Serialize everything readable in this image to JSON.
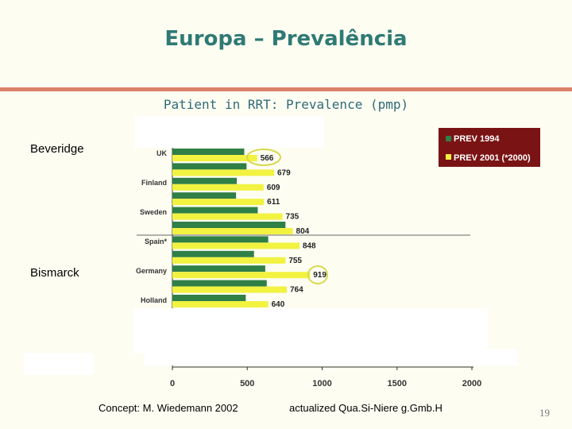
{
  "slide": {
    "title": "Europa – Prevalência",
    "subtitle": "Patient in RRT: Prevalence (pmp)",
    "beveridge_label": "Beveridge",
    "bismarck_label": "Bismarck",
    "credit_left": "Concept: M. Wiedemann 2002",
    "credit_right": "actualized Qua.Si-Niere g.Gmb.H",
    "page_number": "19"
  },
  "colors": {
    "accent_title": "#2f7a74",
    "divider": "#d9826a",
    "series_1994": "#2f7f47",
    "series_2001": "#f2f240",
    "legend_bg": "#7a1414"
  },
  "chart_data": {
    "type": "bar",
    "orientation": "horizontal",
    "categories": [
      "UK",
      "Finland",
      "Sweden",
      "Spain*",
      "Germany",
      "Holland"
    ],
    "series": [
      {
        "name": "PREV 1994",
        "values": [
          null,
          null,
          null,
          null,
          null,
          null
        ]
      },
      {
        "name": "PREV 2001 (*2000)",
        "values": [
          566,
          609,
          735,
          848,
          919,
          640
        ]
      }
    ],
    "extra_2001_labels": [
      679,
      611,
      804,
      755,
      764
    ],
    "circled_values": [
      566,
      919
    ],
    "xlim": [
      0,
      2000
    ],
    "xticks": [
      0,
      500,
      1000,
      1500,
      2000
    ],
    "legend": [
      "PREV 1994",
      "PREV 2001 (*2000)"
    ],
    "legend_position": "top-right"
  }
}
